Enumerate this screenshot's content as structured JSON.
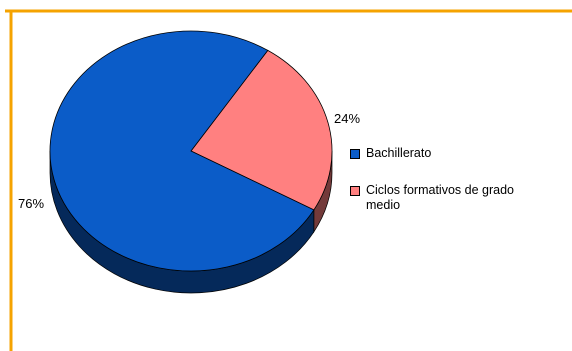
{
  "chart_data": {
    "type": "pie",
    "title": "",
    "style": "3d",
    "slices": [
      {
        "label": "Bachillerato",
        "value": 76,
        "value_label": "76%",
        "color": "#0B5CC8"
      },
      {
        "label": "Ciclos formativos de grado medio",
        "value": 24,
        "value_label": "24%",
        "color": "#FF8080"
      }
    ],
    "legend_position": "right"
  },
  "legend": {
    "items": [
      {
        "label": "Bachillerato"
      },
      {
        "label": "Ciclos formativos de grado medio"
      }
    ]
  },
  "colors": {
    "frame_border": "#F5A300",
    "background": "#ffffff"
  }
}
